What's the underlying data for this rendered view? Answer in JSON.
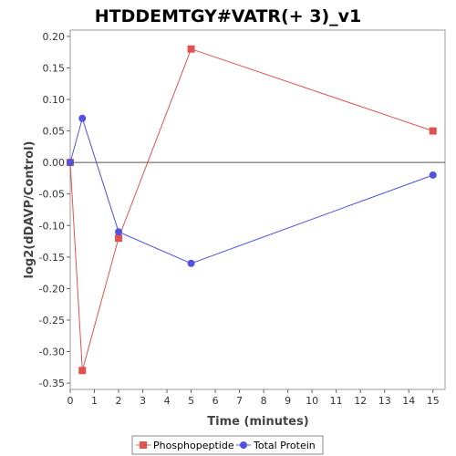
{
  "chart_data": {
    "type": "line",
    "title": "HTDDEMTGY#VATR(+ 3)_v1",
    "xlabel": "Time (minutes)",
    "ylabel": "log2(dDAVP/Control)",
    "xlim": [
      0,
      15.5
    ],
    "ylim": [
      -0.36,
      0.21
    ],
    "x_ticks": [
      0,
      1,
      2,
      3,
      4,
      5,
      6,
      7,
      8,
      9,
      10,
      11,
      12,
      13,
      14,
      15
    ],
    "y_ticks": [
      -0.35,
      -0.3,
      -0.25,
      -0.2,
      -0.15,
      -0.1,
      -0.05,
      0.0,
      0.05,
      0.1,
      0.15,
      0.2
    ],
    "y_tick_labels": [
      "-0.35",
      "-0.30",
      "-0.25",
      "-0.20",
      "-0.15",
      "-0.10",
      "-0.05",
      "0.00",
      "0.05",
      "0.10",
      "0.15",
      "0.20"
    ],
    "grid": false,
    "zero_line": true,
    "legend_position": "bottom",
    "series": [
      {
        "name": "Phosphopeptide",
        "color": "#e05252",
        "marker": "square",
        "x": [
          0,
          0.5,
          2,
          5,
          15
        ],
        "y": [
          0.0,
          -0.33,
          -0.12,
          0.18,
          0.05
        ]
      },
      {
        "name": "Total Protein",
        "color": "#5252e0",
        "marker": "circle",
        "x": [
          0,
          0.5,
          2,
          5,
          15
        ],
        "y": [
          0.0,
          0.07,
          -0.11,
          -0.16,
          -0.02
        ]
      }
    ]
  }
}
